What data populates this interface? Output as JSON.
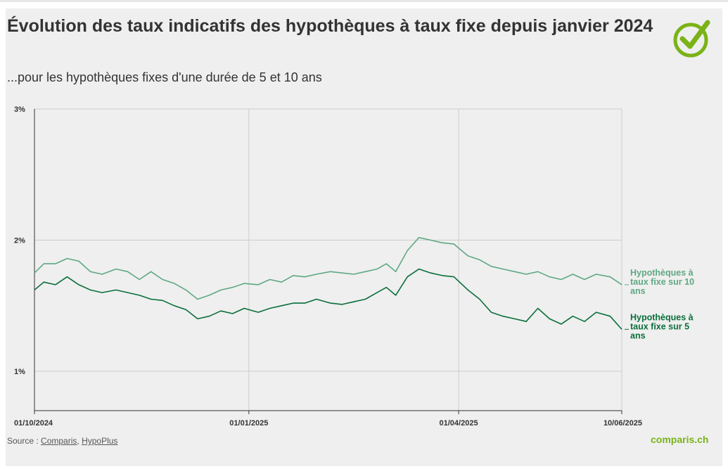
{
  "header": {
    "title": "Évolution des taux indicatifs des hypothèques à taux fixe depuis janvier 2024",
    "subtitle": "...pour les hypothèques fixes d'une durée de 5 et 10 ans"
  },
  "footer": {
    "source_prefix": "Source : ",
    "source_links": [
      "Comparis",
      "HypoPlus"
    ],
    "source_separator": ", ",
    "brand": "comparis.ch"
  },
  "colors": {
    "brand_green": "#7ab317",
    "series_10y": "#5fa883",
    "series_5y": "#0a6e3b",
    "grid": "#cccccc"
  },
  "logo_icon": "check-circle-icon",
  "chart_data": {
    "type": "line",
    "x_range": [
      "2024-10-01",
      "2025-06-10"
    ],
    "y_range": [
      0.7,
      3.0
    ],
    "y_unit": "%",
    "y_ticks": [
      {
        "value": 3,
        "label": "3%"
      },
      {
        "value": 2,
        "label": "2%"
      },
      {
        "value": 1,
        "label": "1%"
      }
    ],
    "x_ticks": [
      {
        "date": "2024-10-01",
        "label": "01/10/2024"
      },
      {
        "date": "2025-01-01",
        "label": "01/01/2025"
      },
      {
        "date": "2025-04-01",
        "label": "01/04/2025"
      },
      {
        "date": "2025-06-10",
        "label": "10/06/2025"
      }
    ],
    "grid": true,
    "series": [
      {
        "name": "Hypothèques à taux fixe sur 10 ans",
        "label_lines": [
          "Hypothèques à",
          "taux fixe sur 10",
          "ans"
        ],
        "color": "#5fa883",
        "points": [
          [
            "2024-10-01",
            1.75
          ],
          [
            "2024-10-05",
            1.82
          ],
          [
            "2024-10-10",
            1.82
          ],
          [
            "2024-10-15",
            1.86
          ],
          [
            "2024-10-20",
            1.84
          ],
          [
            "2024-10-25",
            1.76
          ],
          [
            "2024-10-30",
            1.74
          ],
          [
            "2024-11-05",
            1.78
          ],
          [
            "2024-11-10",
            1.76
          ],
          [
            "2024-11-15",
            1.7
          ],
          [
            "2024-11-20",
            1.76
          ],
          [
            "2024-11-25",
            1.7
          ],
          [
            "2024-11-30",
            1.67
          ],
          [
            "2024-12-05",
            1.62
          ],
          [
            "2024-12-10",
            1.55
          ],
          [
            "2024-12-15",
            1.58
          ],
          [
            "2024-12-20",
            1.62
          ],
          [
            "2024-12-25",
            1.64
          ],
          [
            "2024-12-30",
            1.67
          ],
          [
            "2025-01-05",
            1.66
          ],
          [
            "2025-01-10",
            1.7
          ],
          [
            "2025-01-15",
            1.68
          ],
          [
            "2025-01-20",
            1.73
          ],
          [
            "2025-01-25",
            1.72
          ],
          [
            "2025-01-30",
            1.74
          ],
          [
            "2025-02-05",
            1.76
          ],
          [
            "2025-02-10",
            1.75
          ],
          [
            "2025-02-15",
            1.74
          ],
          [
            "2025-02-20",
            1.76
          ],
          [
            "2025-02-25",
            1.78
          ],
          [
            "2025-03-01",
            1.82
          ],
          [
            "2025-03-05",
            1.76
          ],
          [
            "2025-03-10",
            1.92
          ],
          [
            "2025-03-15",
            2.02
          ],
          [
            "2025-03-20",
            2.0
          ],
          [
            "2025-03-25",
            1.98
          ],
          [
            "2025-03-30",
            1.97
          ],
          [
            "2025-04-05",
            1.88
          ],
          [
            "2025-04-10",
            1.85
          ],
          [
            "2025-04-15",
            1.8
          ],
          [
            "2025-04-20",
            1.78
          ],
          [
            "2025-04-25",
            1.76
          ],
          [
            "2025-04-30",
            1.74
          ],
          [
            "2025-05-05",
            1.76
          ],
          [
            "2025-05-10",
            1.72
          ],
          [
            "2025-05-15",
            1.7
          ],
          [
            "2025-05-20",
            1.74
          ],
          [
            "2025-05-25",
            1.7
          ],
          [
            "2025-05-30",
            1.74
          ],
          [
            "2025-06-05",
            1.72
          ],
          [
            "2025-06-10",
            1.66
          ]
        ]
      },
      {
        "name": "Hypothèques à taux fixe sur 5 ans",
        "label_lines": [
          "Hypothèques à",
          "taux fixe sur 5",
          "ans"
        ],
        "color": "#0a6e3b",
        "points": [
          [
            "2024-10-01",
            1.62
          ],
          [
            "2024-10-05",
            1.68
          ],
          [
            "2024-10-10",
            1.66
          ],
          [
            "2024-10-15",
            1.72
          ],
          [
            "2024-10-20",
            1.66
          ],
          [
            "2024-10-25",
            1.62
          ],
          [
            "2024-10-30",
            1.6
          ],
          [
            "2024-11-05",
            1.62
          ],
          [
            "2024-11-10",
            1.6
          ],
          [
            "2024-11-15",
            1.58
          ],
          [
            "2024-11-20",
            1.55
          ],
          [
            "2024-11-25",
            1.54
          ],
          [
            "2024-11-30",
            1.5
          ],
          [
            "2024-12-05",
            1.47
          ],
          [
            "2024-12-10",
            1.4
          ],
          [
            "2024-12-15",
            1.42
          ],
          [
            "2024-12-20",
            1.46
          ],
          [
            "2024-12-25",
            1.44
          ],
          [
            "2024-12-30",
            1.48
          ],
          [
            "2025-01-05",
            1.45
          ],
          [
            "2025-01-10",
            1.48
          ],
          [
            "2025-01-15",
            1.5
          ],
          [
            "2025-01-20",
            1.52
          ],
          [
            "2025-01-25",
            1.52
          ],
          [
            "2025-01-30",
            1.55
          ],
          [
            "2025-02-05",
            1.52
          ],
          [
            "2025-02-10",
            1.51
          ],
          [
            "2025-02-15",
            1.53
          ],
          [
            "2025-02-20",
            1.55
          ],
          [
            "2025-02-25",
            1.6
          ],
          [
            "2025-03-01",
            1.64
          ],
          [
            "2025-03-05",
            1.58
          ],
          [
            "2025-03-10",
            1.72
          ],
          [
            "2025-03-15",
            1.78
          ],
          [
            "2025-03-20",
            1.75
          ],
          [
            "2025-03-25",
            1.73
          ],
          [
            "2025-03-30",
            1.72
          ],
          [
            "2025-04-05",
            1.62
          ],
          [
            "2025-04-10",
            1.55
          ],
          [
            "2025-04-15",
            1.45
          ],
          [
            "2025-04-20",
            1.42
          ],
          [
            "2025-04-25",
            1.4
          ],
          [
            "2025-04-30",
            1.38
          ],
          [
            "2025-05-05",
            1.48
          ],
          [
            "2025-05-10",
            1.4
          ],
          [
            "2025-05-15",
            1.36
          ],
          [
            "2025-05-20",
            1.42
          ],
          [
            "2025-05-25",
            1.38
          ],
          [
            "2025-05-30",
            1.45
          ],
          [
            "2025-06-05",
            1.42
          ],
          [
            "2025-06-10",
            1.32
          ]
        ]
      }
    ]
  }
}
